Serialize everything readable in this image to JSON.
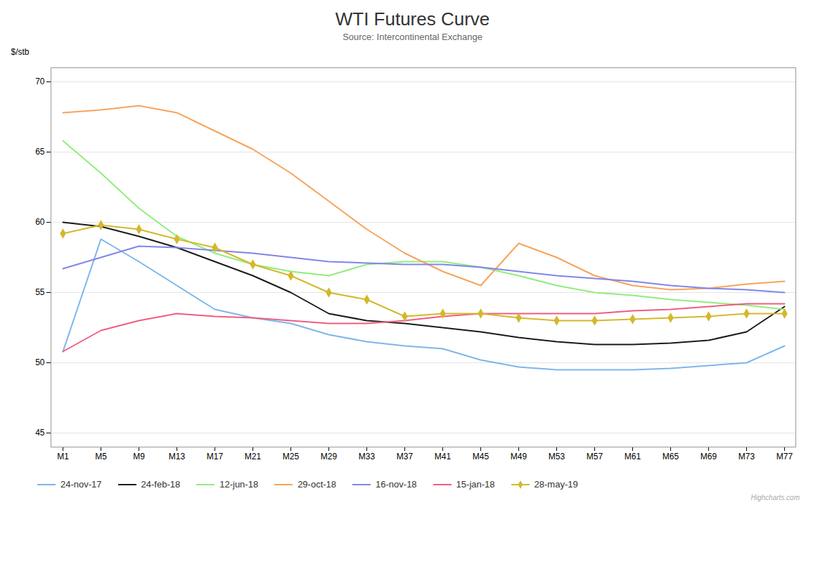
{
  "chart_data": {
    "type": "line",
    "title": "WTI Futures Curve",
    "subtitle": "Source: Intercontinental Exchange",
    "caption": "Highcharts.com",
    "ylabel": "$/stb",
    "categories": [
      "M1",
      "M5",
      "M9",
      "M13",
      "M17",
      "M21",
      "M25",
      "M29",
      "M33",
      "M37",
      "M41",
      "M45",
      "M49",
      "M53",
      "M57",
      "M61",
      "M65",
      "M69",
      "M73",
      "M77"
    ],
    "series": [
      {
        "name": "24-nov-17",
        "color": "#7cb5ec",
        "values": [
          50.8,
          58.8,
          57.2,
          55.5,
          53.8,
          53.2,
          52.8,
          52.0,
          51.5,
          51.2,
          51.0,
          50.2,
          49.7,
          49.5,
          49.5,
          49.5,
          49.6,
          49.8,
          50.0,
          51.2
        ]
      },
      {
        "name": "24-feb-18",
        "color": "#1a1a1a",
        "values": [
          60.0,
          59.7,
          59.0,
          58.2,
          57.2,
          56.2,
          55.0,
          53.5,
          53.0,
          52.8,
          52.5,
          52.2,
          51.8,
          51.5,
          51.3,
          51.3,
          51.4,
          51.6,
          52.2,
          54.0
        ]
      },
      {
        "name": "12-jun-18",
        "color": "#90ed7d",
        "values": [
          65.8,
          63.5,
          61.0,
          59.0,
          57.8,
          57.0,
          56.5,
          56.2,
          57.0,
          57.2,
          57.2,
          56.8,
          56.2,
          55.5,
          55.0,
          54.8,
          54.5,
          54.3,
          54.1,
          53.8
        ]
      },
      {
        "name": "29-oct-18",
        "color": "#f7a35c",
        "values": [
          67.8,
          68.0,
          68.3,
          67.8,
          66.5,
          65.2,
          63.5,
          61.5,
          59.5,
          57.8,
          56.5,
          55.5,
          58.5,
          57.5,
          56.2,
          55.5,
          55.2,
          55.3,
          55.6,
          55.8
        ]
      },
      {
        "name": "16-nov-18",
        "color": "#8085e9",
        "values": [
          56.7,
          57.5,
          58.3,
          58.2,
          58.0,
          57.8,
          57.5,
          57.2,
          57.1,
          57.0,
          57.0,
          56.8,
          56.5,
          56.2,
          56.0,
          55.8,
          55.5,
          55.3,
          55.2,
          55.0
        ]
      },
      {
        "name": "15-jan-18",
        "color": "#f15c80",
        "values": [
          50.8,
          52.3,
          53.0,
          53.5,
          53.3,
          53.2,
          53.0,
          52.8,
          52.8,
          53.0,
          53.3,
          53.5,
          53.5,
          53.5,
          53.5,
          53.7,
          53.8,
          54.0,
          54.2,
          54.2
        ]
      },
      {
        "name": "28-may-19",
        "color": "#d4b82a",
        "marker": "diamond",
        "values": [
          59.2,
          59.8,
          59.5,
          58.8,
          58.2,
          57.0,
          56.2,
          55.0,
          54.5,
          53.3,
          53.5,
          53.5,
          53.2,
          53.0,
          53.0,
          53.1,
          53.2,
          53.3,
          53.5,
          53.5
        ]
      }
    ],
    "ylim": [
      44,
      71
    ],
    "yticks": [
      45,
      50,
      55,
      60,
      65,
      70
    ],
    "grid": true,
    "legend": "bottom"
  }
}
